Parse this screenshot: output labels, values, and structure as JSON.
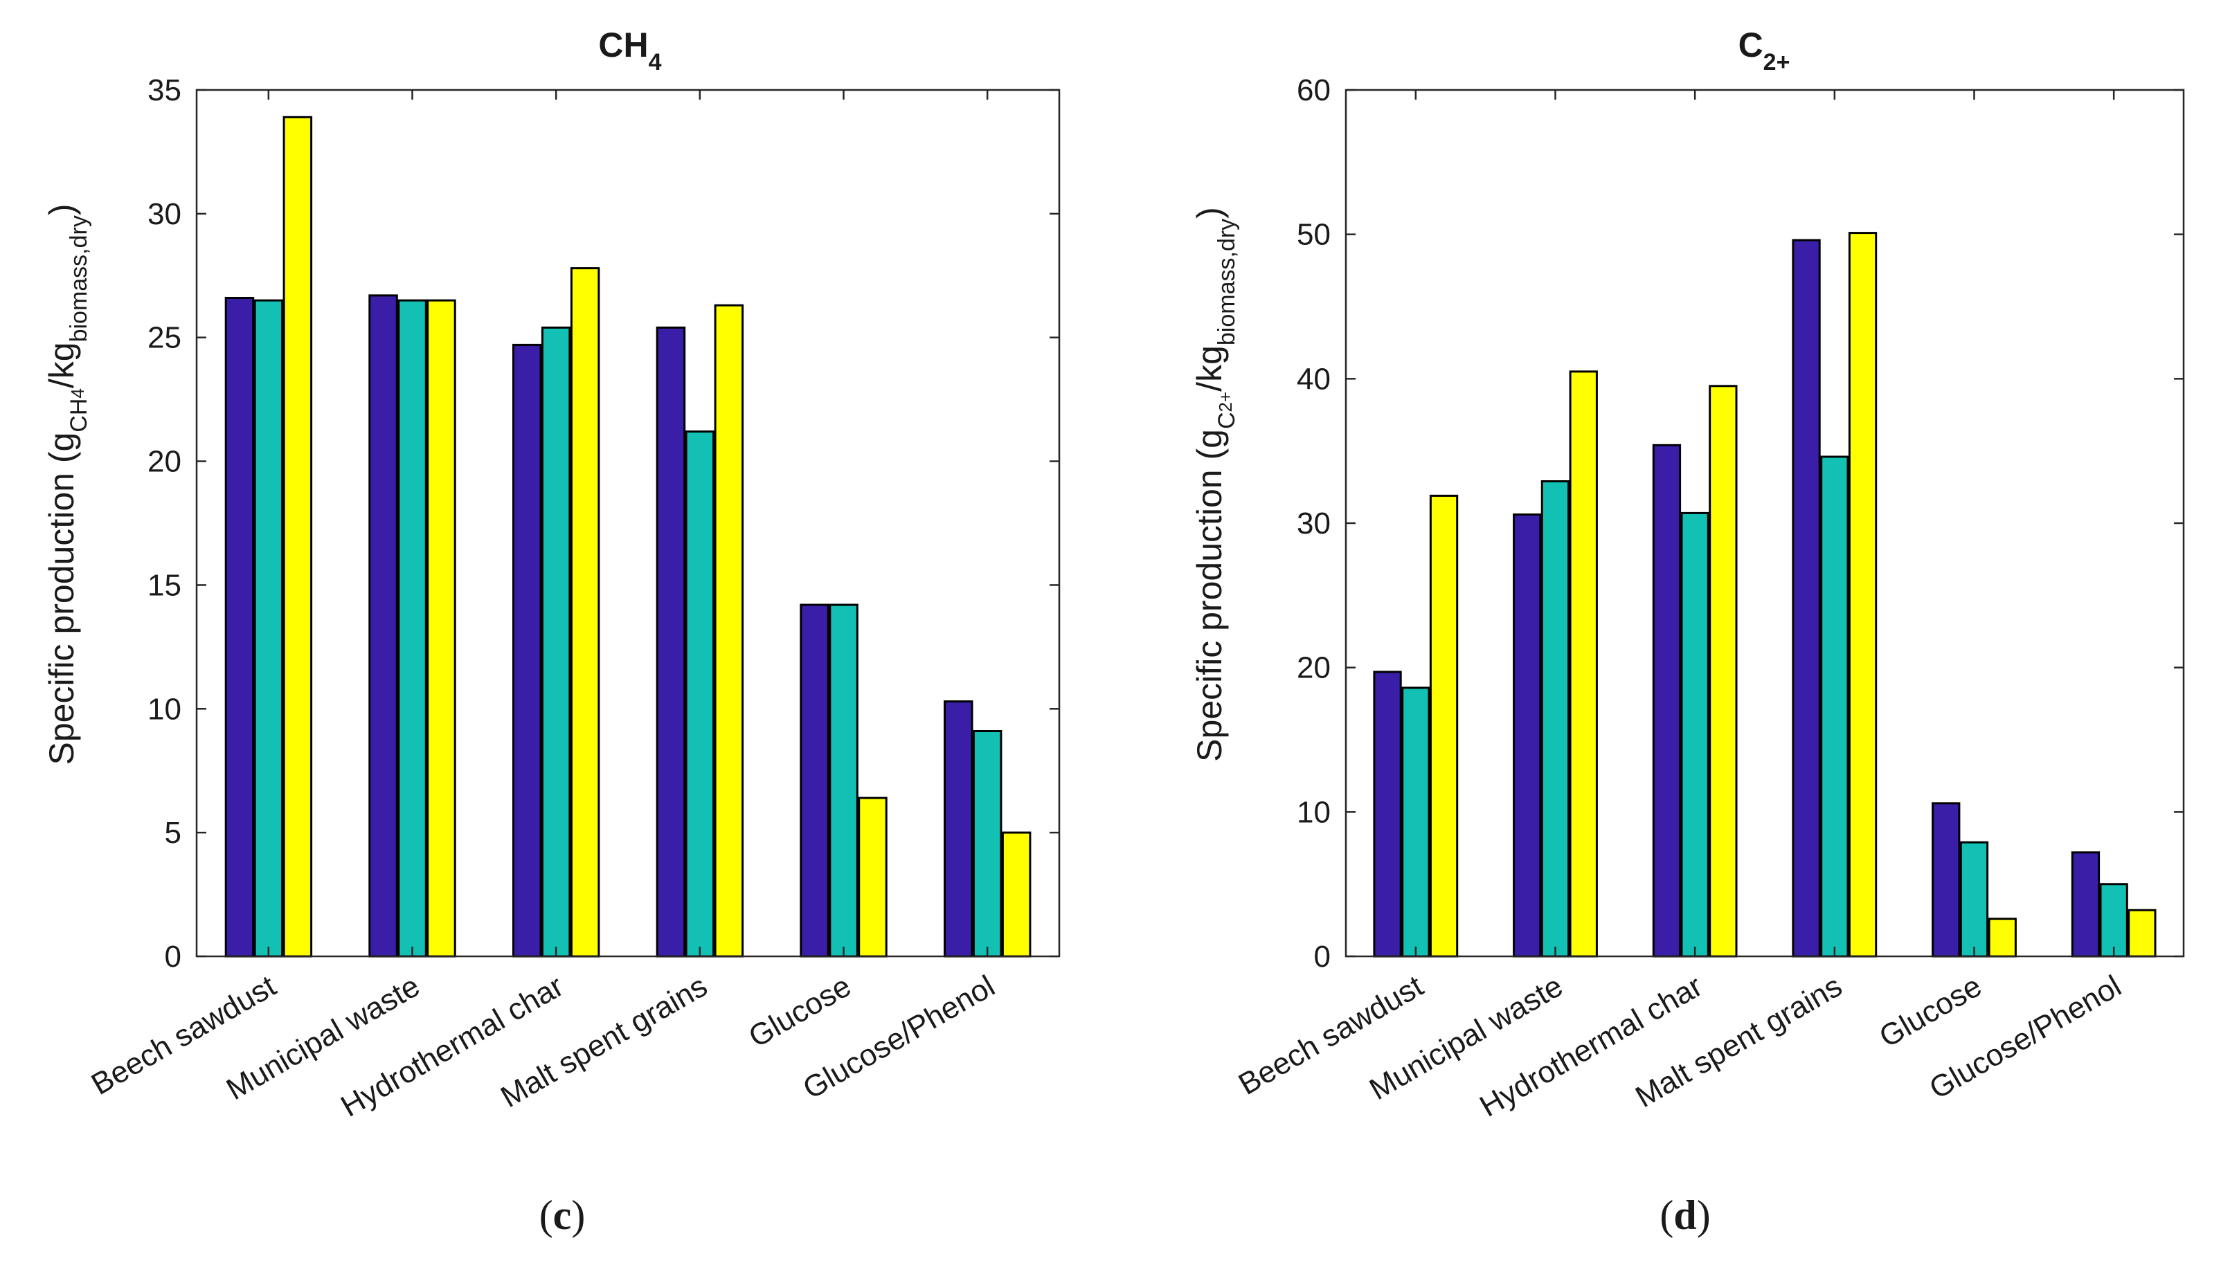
{
  "charts": [
    {
      "id": "c",
      "panel_label": "(c)",
      "panel_letter": "c",
      "title_main": "CH",
      "title_sub": "4",
      "ylabel": {
        "prefix": "Specific production (g",
        "sub1": "CH",
        "sub1b": "4",
        "mid": "/kg",
        "sub2": "biomass,dry",
        "suffix": ")"
      }
    },
    {
      "id": "d",
      "panel_label": "(d)",
      "panel_letter": "d",
      "title_main": "C",
      "title_sub": "2+",
      "ylabel": {
        "prefix": "Specific production (g",
        "sub1": "C",
        "sub1b": "2+",
        "mid": "/kg",
        "sub2": "biomass,dry",
        "suffix": ")"
      }
    }
  ],
  "chart_data": [
    {
      "type": "bar",
      "title": "CH4",
      "xlabel": "",
      "ylabel": "Specific production (gCH4/kgbiomass,dry)",
      "categories": [
        "Beech sawdust",
        "Municipal waste",
        "Hydrothermal char",
        "Malt spent grains",
        "Glucose",
        "Glucose/Phenol"
      ],
      "series": [
        {
          "color": "#3a1ea8",
          "values": [
            26.6,
            26.7,
            24.7,
            25.4,
            14.2,
            10.3
          ]
        },
        {
          "color": "#12c0b4",
          "values": [
            26.5,
            26.5,
            25.4,
            21.2,
            14.2,
            9.1
          ]
        },
        {
          "color": "#ffff00",
          "values": [
            33.9,
            26.5,
            27.8,
            26.3,
            6.4,
            5.0
          ]
        }
      ],
      "ylim": [
        0,
        35
      ],
      "yticks": [
        0,
        5,
        10,
        15,
        20,
        25,
        30,
        35
      ],
      "grid": false,
      "legend": "none"
    },
    {
      "type": "bar",
      "title": "C2+",
      "xlabel": "",
      "ylabel": "Specific production (gC2+/kgbiomass,dry)",
      "categories": [
        "Beech sawdust",
        "Municipal waste",
        "Hydrothermal char",
        "Malt spent grains",
        "Glucose",
        "Glucose/Phenol"
      ],
      "series": [
        {
          "color": "#3a1ea8",
          "values": [
            19.7,
            30.6,
            35.4,
            49.6,
            10.6,
            7.2
          ]
        },
        {
          "color": "#12c0b4",
          "values": [
            18.6,
            32.9,
            30.7,
            34.6,
            7.9,
            5.0
          ]
        },
        {
          "color": "#ffff00",
          "values": [
            31.9,
            40.5,
            39.5,
            50.1,
            2.6,
            3.2
          ]
        }
      ],
      "ylim": [
        0,
        60
      ],
      "yticks": [
        0,
        10,
        20,
        30,
        40,
        50,
        60
      ],
      "grid": false,
      "legend": "none"
    }
  ]
}
